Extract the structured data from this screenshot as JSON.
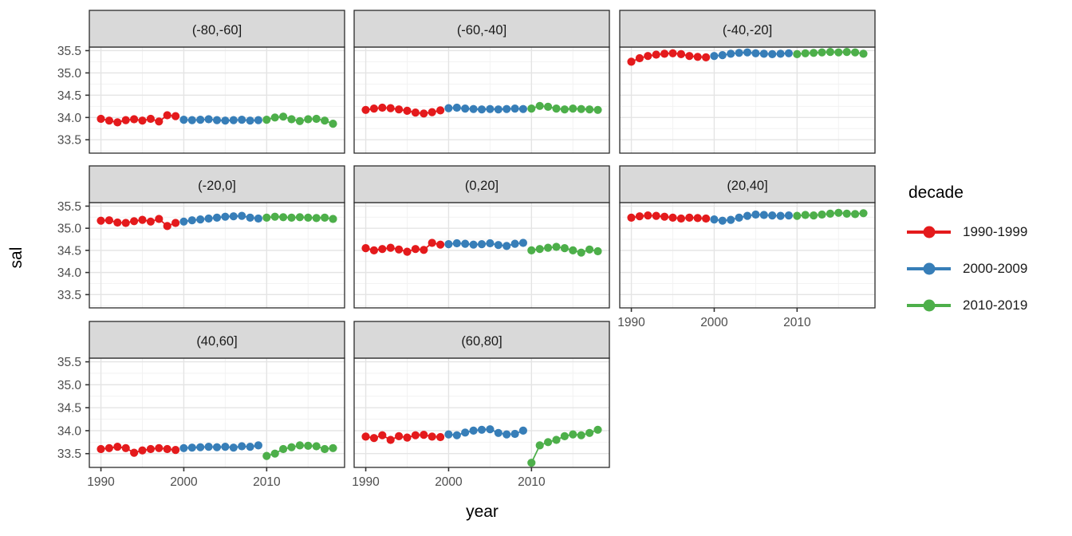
{
  "figure": {
    "y_axis_title": "sal",
    "x_axis_title": "year"
  },
  "legend": {
    "title": "decade",
    "entries": [
      {
        "label": "1990-1999",
        "color": "#E41A1C"
      },
      {
        "label": "2000-2009",
        "color": "#377EB8"
      },
      {
        "label": "2010-2019",
        "color": "#4DAF4A"
      }
    ]
  },
  "style": {
    "strip_fill": "#D9D9D9",
    "strip_border": "#2B2B2B",
    "panel_border": "#2B2B2B",
    "panel_fill": "#FFFFFF",
    "grid_major": "#E4E4E4",
    "grid_minor": "#F2F2F2",
    "tick_color": "#333333",
    "tick_label_color": "#4D4D4D",
    "strip_text_color": "#1A1A1A"
  },
  "chart_data": {
    "type": "scatter",
    "xlabel": "year",
    "ylabel": "sal",
    "legend_title": "decade",
    "legend_position": "right",
    "grid": true,
    "xlim": [
      1988.6,
      2019.4
    ],
    "ylim": [
      33.2,
      35.58
    ],
    "x_ticks": [
      1990,
      2000,
      2010
    ],
    "x_tick_labels": [
      "1990",
      "2000",
      "2010"
    ],
    "x_minor_ticks": [
      1995,
      2005,
      2015
    ],
    "y_ticks": [
      35.5,
      35.0,
      34.5,
      34.0,
      33.5
    ],
    "y_tick_labels": [
      "35.5",
      "35.0",
      "34.5",
      "34.0",
      "33.5"
    ],
    "y_minor_ticks": [
      33.25,
      33.75,
      34.25,
      34.75,
      35.25
    ],
    "decades": [
      {
        "name": "1990-1999",
        "color": "#E41A1C",
        "years": [
          1990,
          1991,
          1992,
          1993,
          1994,
          1995,
          1996,
          1997,
          1998,
          1999
        ]
      },
      {
        "name": "2000-2009",
        "color": "#377EB8",
        "years": [
          2000,
          2001,
          2002,
          2003,
          2004,
          2005,
          2006,
          2007,
          2008,
          2009
        ]
      },
      {
        "name": "2010-2019",
        "color": "#4DAF4A",
        "years": [
          2010,
          2011,
          2012,
          2013,
          2014,
          2015,
          2016,
          2017,
          2018
        ]
      }
    ],
    "facets": [
      {
        "label": "(-80,-60]",
        "values": {
          "1990-1999": [
            33.97,
            33.93,
            33.89,
            33.94,
            33.96,
            33.93,
            33.97,
            33.91,
            34.05,
            34.03
          ],
          "2000-2009": [
            33.95,
            33.94,
            33.95,
            33.96,
            33.94,
            33.93,
            33.94,
            33.95,
            33.93,
            33.94
          ],
          "2010-2019": [
            33.95,
            34.0,
            34.02,
            33.96,
            33.92,
            33.96,
            33.97,
            33.93,
            33.86
          ]
        }
      },
      {
        "label": "(-60,-40]",
        "values": {
          "1990-1999": [
            34.17,
            34.2,
            34.22,
            34.21,
            34.18,
            34.15,
            34.11,
            34.09,
            34.12,
            34.16
          ],
          "2000-2009": [
            34.21,
            34.22,
            34.2,
            34.19,
            34.18,
            34.19,
            34.18,
            34.19,
            34.2,
            34.19
          ],
          "2010-2019": [
            34.2,
            34.26,
            34.24,
            34.2,
            34.18,
            34.2,
            34.19,
            34.18,
            34.17
          ]
        }
      },
      {
        "label": "(-40,-20]",
        "values": {
          "1990-1999": [
            35.25,
            35.33,
            35.38,
            35.41,
            35.43,
            35.44,
            35.42,
            35.38,
            35.36,
            35.35
          ],
          "2000-2009": [
            35.38,
            35.4,
            35.43,
            35.45,
            35.46,
            35.44,
            35.43,
            35.42,
            35.43,
            35.44
          ],
          "2010-2019": [
            35.42,
            35.44,
            35.45,
            35.46,
            35.47,
            35.46,
            35.47,
            35.46,
            35.43
          ]
        }
      },
      {
        "label": "(-20,0]",
        "values": {
          "1990-1999": [
            35.17,
            35.18,
            35.13,
            35.12,
            35.16,
            35.19,
            35.15,
            35.21,
            35.05,
            35.12
          ],
          "2000-2009": [
            35.15,
            35.18,
            35.2,
            35.22,
            35.24,
            35.26,
            35.27,
            35.28,
            35.24,
            35.22
          ],
          "2010-2019": [
            35.24,
            35.26,
            35.25,
            35.24,
            35.25,
            35.24,
            35.23,
            35.24,
            35.21
          ]
        }
      },
      {
        "label": "(0,20]",
        "values": {
          "1990-1999": [
            34.55,
            34.5,
            34.53,
            34.56,
            34.52,
            34.47,
            34.53,
            34.51,
            34.67,
            34.63
          ],
          "2000-2009": [
            34.64,
            34.66,
            34.65,
            34.63,
            34.64,
            34.66,
            34.62,
            34.6,
            34.65,
            34.67
          ],
          "2010-2019": [
            34.5,
            34.53,
            34.56,
            34.58,
            34.55,
            34.5,
            34.45,
            34.52,
            34.48
          ]
        }
      },
      {
        "label": "(20,40]",
        "values": {
          "1990-1999": [
            35.24,
            35.27,
            35.29,
            35.28,
            35.26,
            35.24,
            35.22,
            35.24,
            35.23,
            35.22
          ],
          "2000-2009": [
            35.2,
            35.17,
            35.19,
            35.24,
            35.28,
            35.31,
            35.3,
            35.29,
            35.28,
            35.29
          ],
          "2010-2019": [
            35.28,
            35.3,
            35.29,
            35.31,
            35.33,
            35.35,
            35.33,
            35.32,
            35.34
          ]
        }
      },
      {
        "label": "(40,60]",
        "values": {
          "1990-1999": [
            33.6,
            33.62,
            33.65,
            33.62,
            33.52,
            33.57,
            33.6,
            33.62,
            33.6,
            33.58
          ],
          "2000-2009": [
            33.62,
            33.63,
            33.64,
            33.65,
            33.64,
            33.65,
            33.63,
            33.66,
            33.65,
            33.68
          ],
          "2010-2019": [
            33.45,
            33.5,
            33.6,
            33.64,
            33.68,
            33.67,
            33.66,
            33.6,
            33.62
          ]
        }
      },
      {
        "label": "(60,80]",
        "values": {
          "1990-1999": [
            33.87,
            33.84,
            33.9,
            33.8,
            33.88,
            33.85,
            33.9,
            33.91,
            33.87,
            33.86
          ],
          "2000-2009": [
            33.92,
            33.9,
            33.96,
            34.0,
            34.02,
            34.03,
            33.95,
            33.92,
            33.93,
            34.0
          ],
          "2010-2019": [
            33.3,
            33.68,
            33.75,
            33.8,
            33.88,
            33.92,
            33.9,
            33.95,
            34.02
          ]
        }
      }
    ]
  }
}
